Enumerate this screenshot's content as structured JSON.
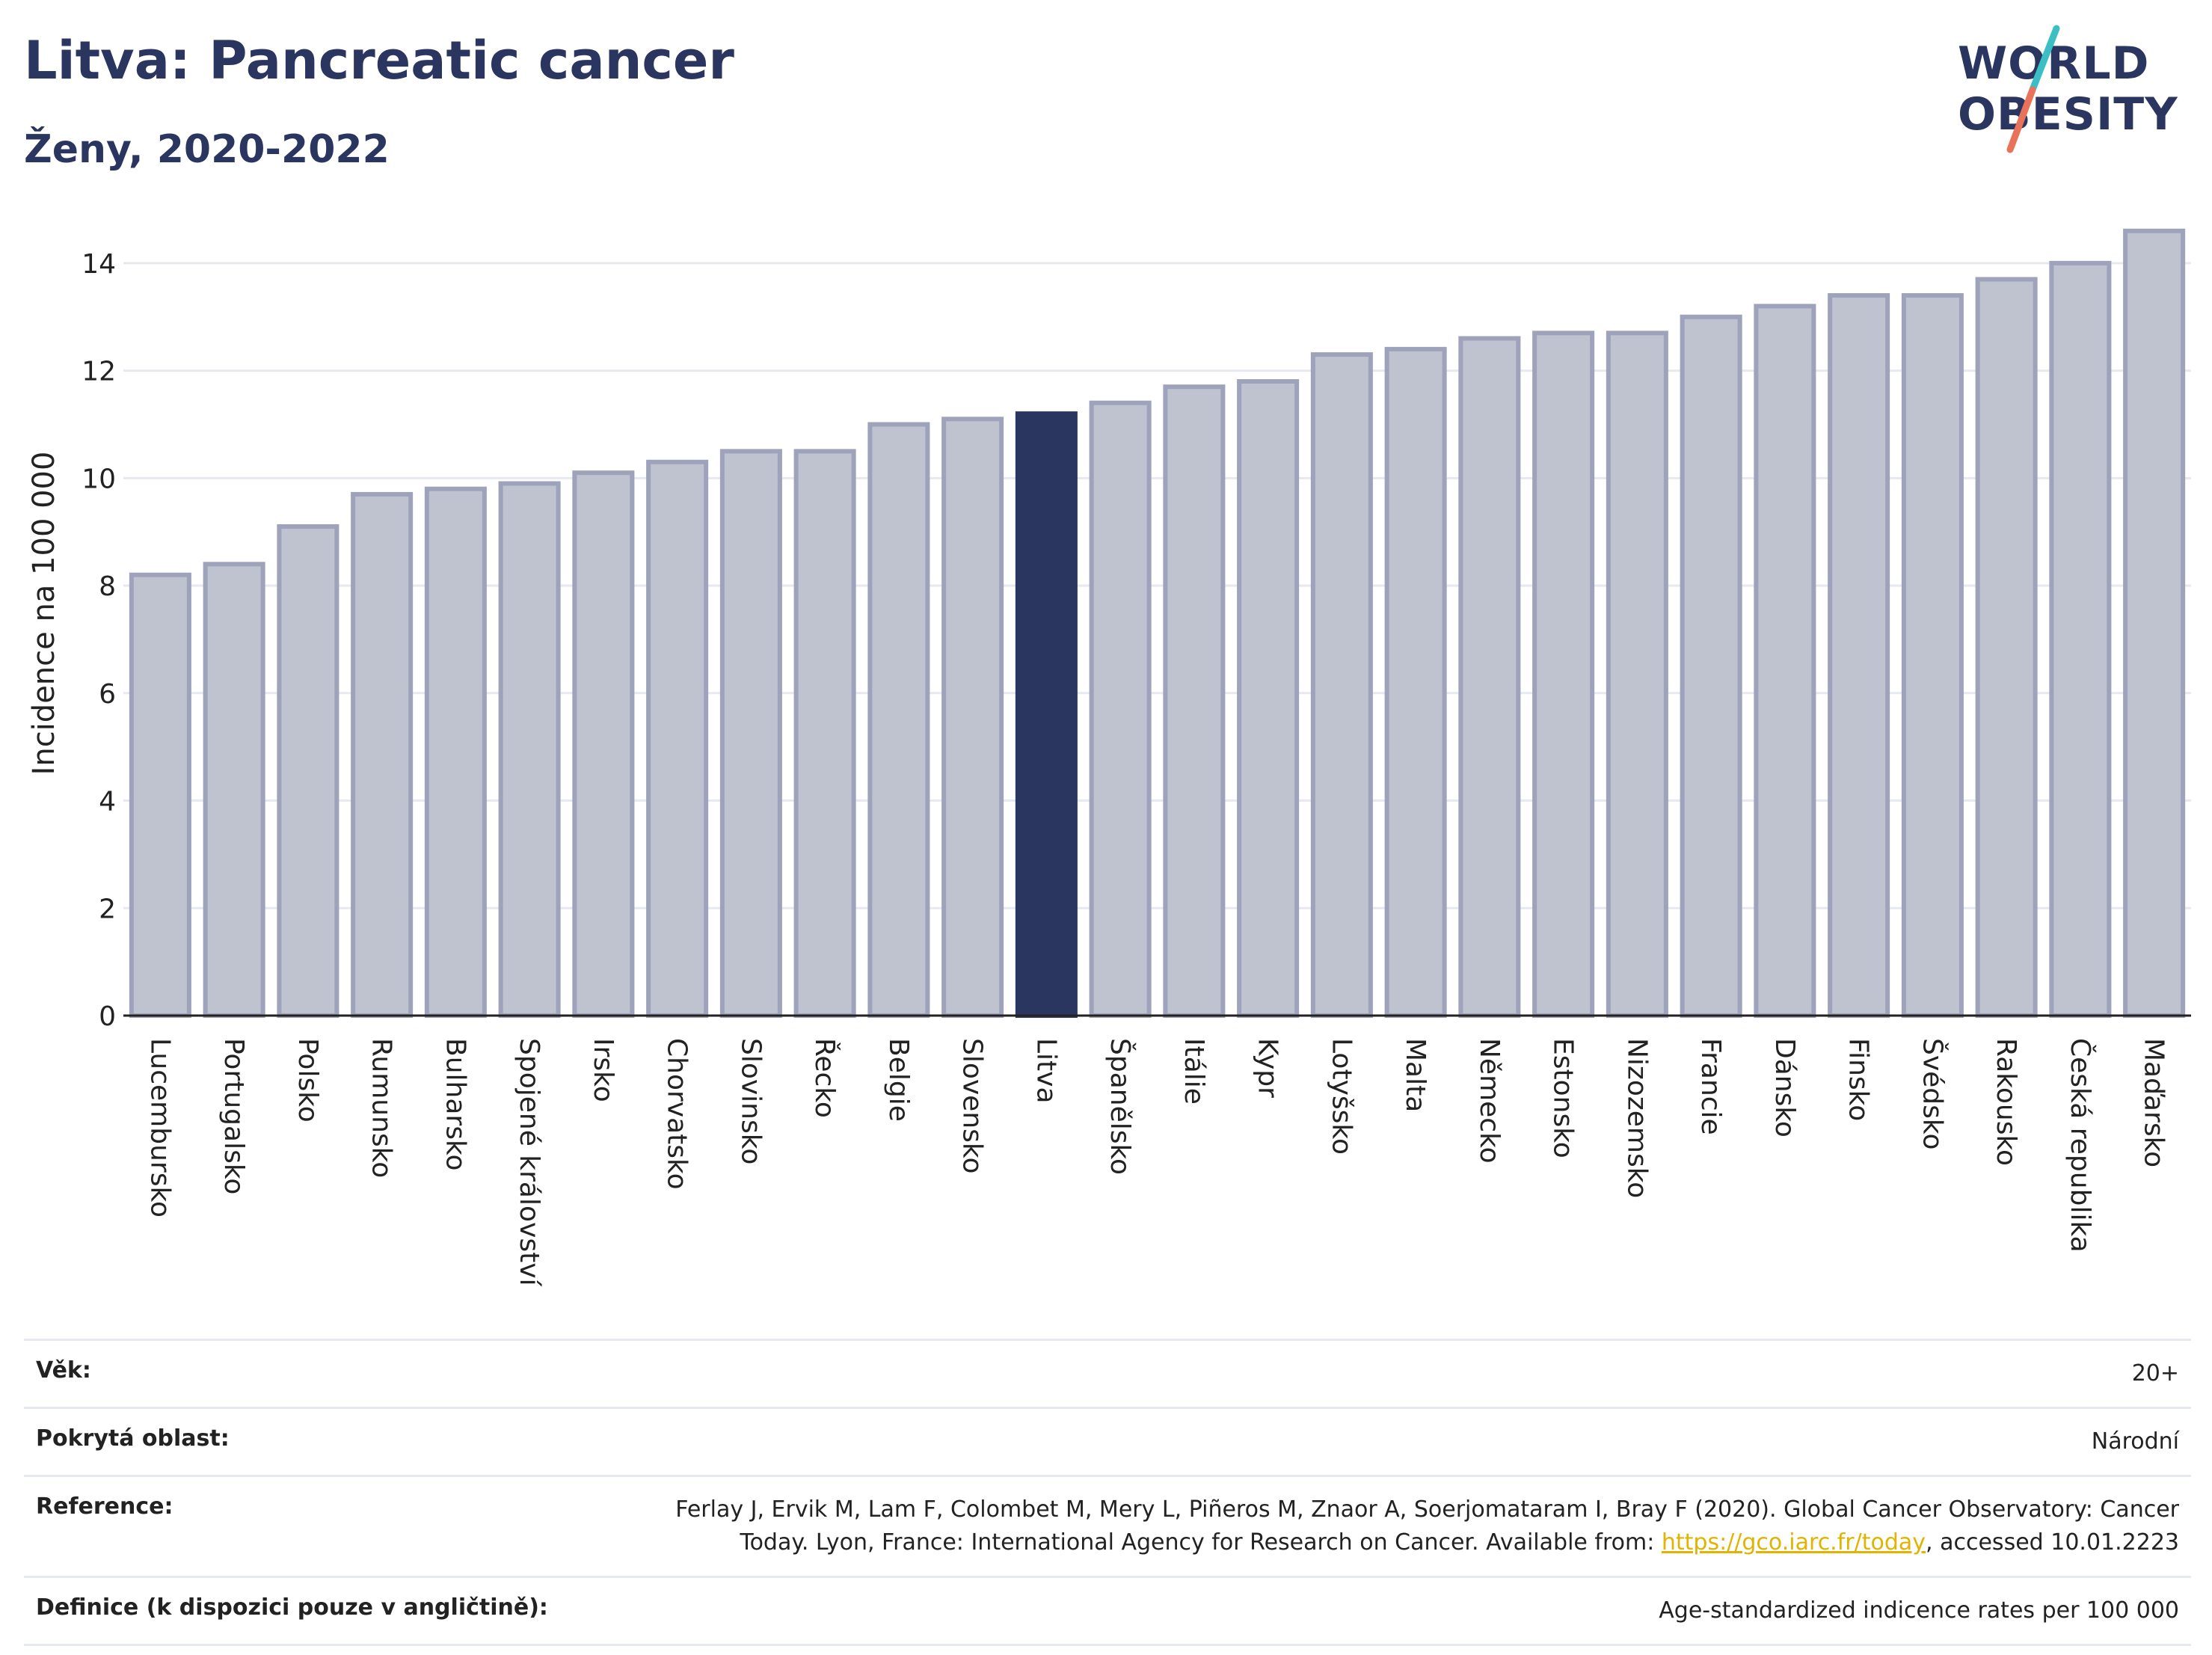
{
  "header": {
    "title": "Litva: Pancreatic cancer",
    "subtitle": "Ženy, 2020-2022"
  },
  "logo": {
    "line1": "WORLD",
    "line2": "OBESITY",
    "accent_teal": "#3bbfc4",
    "accent_red": "#e8735a"
  },
  "colors": {
    "bar_default": "#bfc2cf",
    "bar_border": "#9ea3bb",
    "bar_highlight": "#2a3560",
    "grid": "#e6e9ef",
    "axis": "#222222"
  },
  "chart_data": {
    "type": "bar",
    "title": "",
    "xlabel": "",
    "ylabel": "Incidence na 100 000",
    "ylim": [
      0,
      15
    ],
    "yticks": [
      0,
      2,
      4,
      6,
      8,
      10,
      12,
      14
    ],
    "grid": true,
    "highlight": "Litva",
    "categories": [
      "Lucembursko",
      "Portugalsko",
      "Polsko",
      "Rumunsko",
      "Bulharsko",
      "Spojené království",
      "Irsko",
      "Chorvatsko",
      "Slovinsko",
      "Řecko",
      "Belgie",
      "Slovensko",
      "Litva",
      "Španělsko",
      "Itálie",
      "Kypr",
      "Lotyšsko",
      "Malta",
      "Německo",
      "Estonsko",
      "Nizozemsko",
      "Francie",
      "Dánsko",
      "Finsko",
      "Švédsko",
      "Rakousko",
      "Česká republika",
      "Maďarsko"
    ],
    "values": [
      8.2,
      8.4,
      9.1,
      9.7,
      9.8,
      9.9,
      10.1,
      10.3,
      10.5,
      10.5,
      11.0,
      11.1,
      11.2,
      11.4,
      11.7,
      11.8,
      12.3,
      12.4,
      12.6,
      12.7,
      12.7,
      13.0,
      13.2,
      13.4,
      13.4,
      13.7,
      14.0,
      14.6
    ]
  },
  "info": {
    "age_label": "Věk:",
    "age_value": "20+",
    "coverage_label": "Pokrytá oblast:",
    "coverage_value": "Národní",
    "reference_label": "Reference:",
    "reference_text_1": "Ferlay J, Ervik M, Lam F, Colombet M, Mery L, Piñeros M, Znaor A, Soerjomataram I, Bray F (2020). Global Cancer Observatory: Cancer",
    "reference_text_2": "Today. Lyon, France: International Agency for Research on Cancer. Available from: ",
    "reference_link": "https://gco.iarc.fr/today",
    "reference_text_3": ", accessed 10.01.2223",
    "definition_label": "Definice (k dispozici pouze v angličtině):",
    "definition_value": "Age-standardized indicence rates per 100 000"
  }
}
